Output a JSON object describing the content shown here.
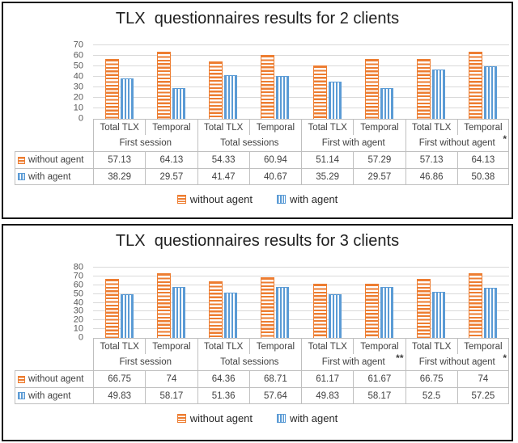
{
  "colors": {
    "without_agent": "#ED7D31",
    "with_agent": "#5B9BD5",
    "gridline": "#D9D9D9",
    "table_border": "#BFBFBF",
    "axis_text": "#595959"
  },
  "chart_data": [
    {
      "type": "bar",
      "title": "TLX  questionnaires results for 2 clients",
      "xlabel": "",
      "ylabel": "",
      "ylim": [
        0,
        70
      ],
      "ytick_step": 10,
      "grid": true,
      "legend_position": "bottom",
      "has_data_table": true,
      "groups": [
        "First session",
        "Total sessions",
        "First with agent",
        "First without agent"
      ],
      "categories": [
        "Total TLX",
        "Temporal",
        "Total TLX",
        "Temporal",
        "Total TLX",
        "Temporal",
        "Total TLX",
        "Temporal"
      ],
      "category_notes": [
        "",
        "",
        "",
        "",
        "",
        "",
        "",
        "*"
      ],
      "series": [
        {
          "name": "without agent",
          "pattern": "horizontal-stripes",
          "color": "#ED7D31",
          "values": [
            57.13,
            64.13,
            54.33,
            60.94,
            51.14,
            57.29,
            57.13,
            64.13
          ]
        },
        {
          "name": "with agent",
          "pattern": "vertical-stripes",
          "color": "#5B9BD5",
          "values": [
            38.29,
            29.57,
            41.47,
            40.67,
            35.29,
            29.57,
            46.86,
            50.38
          ]
        }
      ]
    },
    {
      "type": "bar",
      "title": "TLX  questionnaires results for 3 clients",
      "xlabel": "",
      "ylabel": "",
      "ylim": [
        0,
        80
      ],
      "ytick_step": 10,
      "grid": true,
      "legend_position": "bottom",
      "has_data_table": true,
      "groups": [
        "First session",
        "Total sessions",
        "First with agent",
        "First without agent"
      ],
      "categories": [
        "Total TLX",
        "Temporal",
        "Total TLX",
        "Temporal",
        "Total TLX",
        "Temporal",
        "Total TLX",
        "Temporal"
      ],
      "category_notes": [
        "",
        "",
        "",
        "",
        "",
        "**",
        "",
        "*"
      ],
      "series": [
        {
          "name": "without agent",
          "pattern": "horizontal-stripes",
          "color": "#ED7D31",
          "values": [
            66.75,
            74,
            64.36,
            68.71,
            61.17,
            61.67,
            66.75,
            74
          ]
        },
        {
          "name": "with agent",
          "pattern": "vertical-stripes",
          "color": "#5B9BD5",
          "values": [
            49.83,
            58.17,
            51.36,
            57.64,
            49.83,
            58.17,
            52.5,
            57.25
          ]
        }
      ]
    }
  ]
}
